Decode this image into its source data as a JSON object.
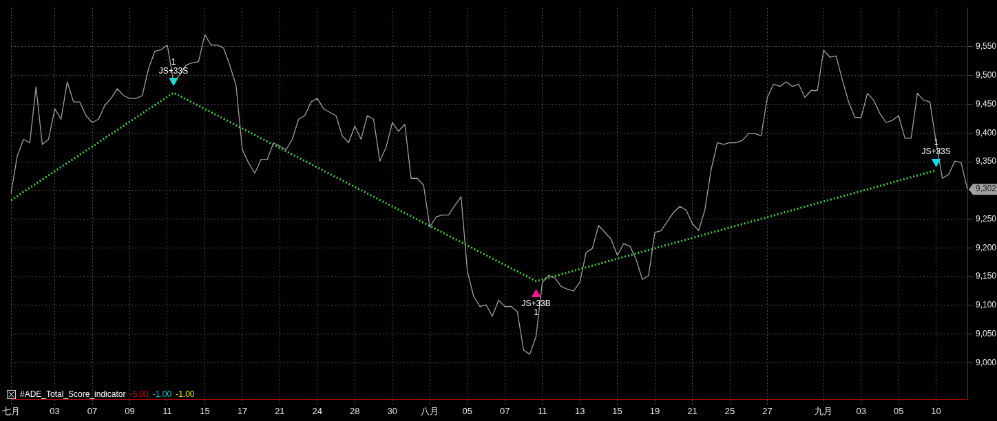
{
  "chart_data": {
    "type": "line",
    "grid": true,
    "legend": false,
    "marker": "none",
    "categories": [
      "七月",
      null,
      null,
      null,
      null,
      null,
      null,
      "03",
      null,
      null,
      null,
      null,
      null,
      "07",
      null,
      null,
      null,
      null,
      null,
      "09",
      null,
      null,
      null,
      null,
      null,
      "11",
      null,
      null,
      null,
      null,
      null,
      "15",
      null,
      null,
      null,
      null,
      null,
      "17",
      null,
      null,
      null,
      null,
      null,
      "21",
      null,
      null,
      null,
      null,
      null,
      "24",
      null,
      null,
      null,
      null,
      null,
      "28",
      null,
      null,
      null,
      null,
      null,
      "30",
      null,
      null,
      null,
      null,
      null,
      "八月",
      null,
      null,
      null,
      null,
      null,
      "05",
      null,
      null,
      null,
      null,
      null,
      "07",
      null,
      null,
      null,
      null,
      null,
      "11",
      null,
      null,
      null,
      null,
      null,
      "13",
      null,
      null,
      null,
      null,
      null,
      "15",
      null,
      null,
      null,
      null,
      null,
      "19",
      null,
      null,
      null,
      null,
      null,
      "21",
      null,
      null,
      null,
      null,
      null,
      "25",
      null,
      null,
      null,
      null,
      null,
      "27",
      null,
      null,
      null,
      null,
      null,
      null,
      null,
      null,
      "九月",
      null,
      null,
      null,
      null,
      null,
      "03",
      null,
      null,
      null,
      null,
      null,
      "05",
      null,
      null,
      null,
      null,
      null,
      "10",
      null,
      null,
      null,
      null,
      null
    ],
    "ylim": [
      8937,
      9618
    ],
    "yticks": [
      {
        "value": 9000,
        "label": "9,000"
      },
      {
        "value": 9050,
        "label": "9,050"
      },
      {
        "value": 9100,
        "label": "9,100"
      },
      {
        "value": 9150,
        "label": "9,150"
      },
      {
        "value": 9200,
        "label": "9,200"
      },
      {
        "value": 9250,
        "label": "9,250"
      },
      {
        "value": 9300,
        "label": null
      },
      {
        "value": 9350,
        "label": "9,350"
      },
      {
        "value": 9400,
        "label": "9,400"
      },
      {
        "value": 9450,
        "label": "9,450"
      },
      {
        "value": 9500,
        "label": "9,500"
      },
      {
        "value": 9550,
        "label": "9,550"
      }
    ],
    "annotations": [
      "#ADE_Total_Score_indicator",
      "-5.00",
      "-1.00",
      "-1.00"
    ],
    "series": [
      {
        "color": "#a0a0a0",
        "values": [
          9295,
          9360,
          9389,
          9383,
          9480,
          9380,
          9389,
          9442,
          9424,
          9489,
          9454,
          9454,
          9430,
          9418,
          9424,
          9448,
          9460,
          9477,
          9465,
          9460,
          9460,
          9465,
          9512,
          9542,
          9545,
          9553,
          9489,
          9501,
          9518,
          9522,
          9524,
          9571,
          9553,
          9553,
          9548,
          9518,
          9483,
          9371,
          9348,
          9330,
          9354,
          9354,
          9383,
          9377,
          9371,
          9389,
          9424,
          9430,
          9454,
          9460,
          9442,
          9436,
          9430,
          9395,
          9383,
          9412,
          9389,
          9430,
          9424,
          9351,
          9375,
          9418,
          9403,
          9415,
          9321,
          9321,
          9309,
          9236,
          9254,
          9257,
          9257,
          9274,
          9289,
          9160,
          9116,
          9098,
          9101,
          9081,
          9109,
          9098,
          9098,
          9089,
          9022,
          9015,
          9046,
          9140,
          9152,
          9148,
          9133,
          9128,
          9125,
          9140,
          9192,
          9199,
          9239,
          9227,
          9215,
          9187,
          9207,
          9203,
          9180,
          9145,
          9152,
          9227,
          9230,
          9246,
          9262,
          9272,
          9266,
          9242,
          9230,
          9266,
          9336,
          9383,
          9380,
          9383,
          9383,
          9387,
          9399,
          9399,
          9395,
          9462,
          9485,
          9481,
          9489,
          9481,
          9485,
          9462,
          9474,
          9474,
          9544,
          9532,
          9534,
          9492,
          9454,
          9427,
          9427,
          9469,
          9457,
          9434,
          9418,
          9422,
          9430,
          9391,
          9391,
          9469,
          9457,
          9454,
          9383,
          9321,
          9328,
          9351,
          9348,
          9302
        ],
        "value_labels": [
          null,
          null,
          null,
          null,
          null,
          null,
          null,
          null,
          null,
          null,
          null,
          null,
          null,
          null,
          null,
          null,
          null,
          null,
          null,
          null,
          null,
          null,
          null,
          null,
          null,
          null,
          null,
          null,
          null,
          null,
          null,
          null,
          null,
          null,
          null,
          null,
          null,
          null,
          null,
          null,
          null,
          null,
          null,
          null,
          null,
          null,
          null,
          null,
          null,
          null,
          null,
          null,
          null,
          null,
          null,
          null,
          null,
          null,
          null,
          null,
          null,
          null,
          null,
          null,
          null,
          null,
          null,
          null,
          null,
          null,
          null,
          null,
          null,
          null,
          null,
          null,
          null,
          null,
          null,
          null,
          null,
          null,
          null,
          null,
          null,
          null,
          null,
          null,
          null,
          null,
          null,
          null,
          null,
          null,
          null,
          null,
          null,
          null,
          null,
          null,
          null,
          null,
          null,
          null,
          null,
          null,
          null,
          null,
          null,
          null,
          null,
          null,
          null,
          null,
          null,
          null,
          null,
          null,
          null,
          null,
          null,
          null,
          null,
          null,
          null,
          null,
          null,
          null,
          null,
          null,
          null,
          null,
          null,
          null,
          null,
          null,
          null,
          null,
          null,
          null,
          null,
          null,
          null,
          null,
          null,
          null,
          null,
          null,
          null,
          null,
          null,
          null,
          null,
          "9,302"
        ]
      },
      {
        "type": "line",
        "color": "#44cc44",
        "line_style": "dotted",
        "values": [
          9283,
          null,
          null,
          null,
          null,
          null,
          null,
          null,
          null,
          null,
          null,
          null,
          null,
          null,
          null,
          null,
          null,
          null,
          null,
          null,
          null,
          null,
          null,
          null,
          null,
          null,
          9470,
          null,
          null,
          null,
          null,
          null,
          null,
          null,
          null,
          null,
          null,
          null,
          null,
          null,
          null,
          null,
          null,
          null,
          null,
          null,
          null,
          null,
          null,
          null,
          null,
          null,
          null,
          null,
          null,
          null,
          null,
          null,
          null,
          null,
          null,
          null,
          null,
          null,
          null,
          null,
          null,
          null,
          null,
          null,
          null,
          null,
          null,
          null,
          null,
          null,
          null,
          null,
          null,
          null,
          null,
          null,
          null,
          null,
          9142,
          null,
          null,
          null,
          null,
          null,
          null,
          null,
          null,
          null,
          null,
          null,
          null,
          null,
          null,
          null,
          null,
          null,
          null,
          null,
          null,
          null,
          null,
          null,
          null,
          null,
          null,
          null,
          null,
          null,
          null,
          null,
          null,
          null,
          null,
          null,
          null,
          null,
          null,
          null,
          null,
          null,
          null,
          null,
          null,
          null,
          null,
          null,
          null,
          null,
          null,
          null,
          null,
          null,
          null,
          null,
          null,
          null,
          null,
          null,
          null,
          null,
          null,
          null,
          9335,
          null,
          null,
          null,
          null,
          null
        ]
      },
      {
        "type": "scatter",
        "color": "#00e5ee",
        "marker": "triangle",
        "values": [
          null,
          null,
          null,
          null,
          null,
          null,
          null,
          null,
          null,
          null,
          null,
          null,
          null,
          null,
          null,
          null,
          null,
          null,
          null,
          null,
          null,
          null,
          null,
          null,
          null,
          null,
          9491,
          null,
          null,
          null,
          null,
          null,
          null,
          null,
          null,
          null,
          null,
          null,
          null,
          null,
          null,
          null,
          null,
          null,
          null,
          null,
          null,
          null,
          null,
          null,
          null,
          null,
          null,
          null,
          null,
          null,
          null,
          null,
          null,
          null,
          null,
          null,
          null,
          null,
          null,
          null,
          null,
          null,
          null,
          null,
          null,
          null,
          null,
          null,
          null,
          null,
          null,
          null,
          null,
          null,
          null,
          null,
          null,
          null,
          null,
          null,
          null,
          null,
          null,
          null,
          null,
          null,
          null,
          null,
          null,
          null,
          null,
          null,
          null,
          null,
          null,
          null,
          null,
          null,
          null,
          null,
          null,
          null,
          null,
          null,
          null,
          null,
          null,
          null,
          null,
          null,
          null,
          null,
          null,
          null,
          null,
          null,
          null,
          null,
          null,
          null,
          null,
          null,
          null,
          null,
          null,
          null,
          null,
          null,
          null,
          null,
          null,
          null,
          null,
          null,
          null,
          null,
          null,
          null,
          null,
          null,
          null,
          null,
          9350,
          null,
          null,
          null,
          null,
          null
        ],
        "value_labels": [
          null,
          null,
          null,
          null,
          null,
          null,
          null,
          null,
          null,
          null,
          null,
          null,
          null,
          null,
          null,
          null,
          null,
          null,
          null,
          null,
          null,
          null,
          null,
          null,
          null,
          null,
          "1\nJS+33S",
          null,
          null,
          null,
          null,
          null,
          null,
          null,
          null,
          null,
          null,
          null,
          null,
          null,
          null,
          null,
          null,
          null,
          null,
          null,
          null,
          null,
          null,
          null,
          null,
          null,
          null,
          null,
          null,
          null,
          null,
          null,
          null,
          null,
          null,
          null,
          null,
          null,
          null,
          null,
          null,
          null,
          null,
          null,
          null,
          null,
          null,
          null,
          null,
          null,
          null,
          null,
          null,
          null,
          null,
          null,
          null,
          null,
          null,
          null,
          null,
          null,
          null,
          null,
          null,
          null,
          null,
          null,
          null,
          null,
          null,
          null,
          null,
          null,
          null,
          null,
          null,
          null,
          null,
          null,
          null,
          null,
          null,
          null,
          null,
          null,
          null,
          null,
          null,
          null,
          null,
          null,
          null,
          null,
          null,
          null,
          null,
          null,
          null,
          null,
          null,
          null,
          null,
          null,
          null,
          null,
          null,
          null,
          null,
          null,
          null,
          null,
          null,
          null,
          null,
          null,
          null,
          null,
          null,
          null,
          null,
          null,
          "1\nJS+33S",
          null,
          null,
          null,
          null,
          null
        ]
      },
      {
        "type": "scatter",
        "color": "#ff1493",
        "marker": "triangle",
        "values": [
          null,
          null,
          null,
          null,
          null,
          null,
          null,
          null,
          null,
          null,
          null,
          null,
          null,
          null,
          null,
          null,
          null,
          null,
          null,
          null,
          null,
          null,
          null,
          null,
          null,
          null,
          null,
          null,
          null,
          null,
          null,
          null,
          null,
          null,
          null,
          null,
          null,
          null,
          null,
          null,
          null,
          null,
          null,
          null,
          null,
          null,
          null,
          null,
          null,
          null,
          null,
          null,
          null,
          null,
          null,
          null,
          null,
          null,
          null,
          null,
          null,
          null,
          null,
          null,
          null,
          null,
          null,
          null,
          null,
          null,
          null,
          null,
          null,
          null,
          null,
          null,
          null,
          null,
          null,
          null,
          null,
          null,
          null,
          null,
          9119,
          null,
          null,
          null,
          null,
          null,
          null,
          null,
          null,
          null,
          null,
          null,
          null,
          null,
          null,
          null,
          null,
          null,
          null,
          null,
          null,
          null,
          null,
          null,
          null,
          null,
          null,
          null,
          null,
          null,
          null,
          null,
          null,
          null,
          null,
          null,
          null,
          null,
          null,
          null,
          null,
          null,
          null,
          null,
          null,
          null,
          null,
          null,
          null,
          null,
          null,
          null,
          null,
          null,
          null,
          null,
          null,
          null,
          null,
          null,
          null,
          null,
          null,
          null,
          null,
          null,
          null,
          null,
          null,
          null
        ],
        "value_labels": [
          null,
          null,
          null,
          null,
          null,
          null,
          null,
          null,
          null,
          null,
          null,
          null,
          null,
          null,
          null,
          null,
          null,
          null,
          null,
          null,
          null,
          null,
          null,
          null,
          null,
          null,
          null,
          null,
          null,
          null,
          null,
          null,
          null,
          null,
          null,
          null,
          null,
          null,
          null,
          null,
          null,
          null,
          null,
          null,
          null,
          null,
          null,
          null,
          null,
          null,
          null,
          null,
          null,
          null,
          null,
          null,
          null,
          null,
          null,
          null,
          null,
          null,
          null,
          null,
          null,
          null,
          null,
          null,
          null,
          null,
          null,
          null,
          null,
          null,
          null,
          null,
          null,
          null,
          null,
          null,
          null,
          null,
          null,
          null,
          "JS+33B\n1",
          null,
          null,
          null,
          null,
          null,
          null,
          null,
          null,
          null,
          null,
          null,
          null,
          null,
          null,
          null,
          null,
          null,
          null,
          null,
          null,
          null,
          null,
          null,
          null,
          null,
          null,
          null,
          null,
          null,
          null,
          null,
          null,
          null,
          null,
          null,
          null,
          null,
          null,
          null,
          null,
          null,
          null,
          null,
          null,
          null,
          null,
          null,
          null,
          null,
          null,
          null,
          null,
          null,
          null,
          null,
          null,
          null,
          null,
          null,
          null,
          null,
          null,
          null,
          null,
          null,
          null,
          null,
          null,
          null
        ]
      }
    ]
  }
}
